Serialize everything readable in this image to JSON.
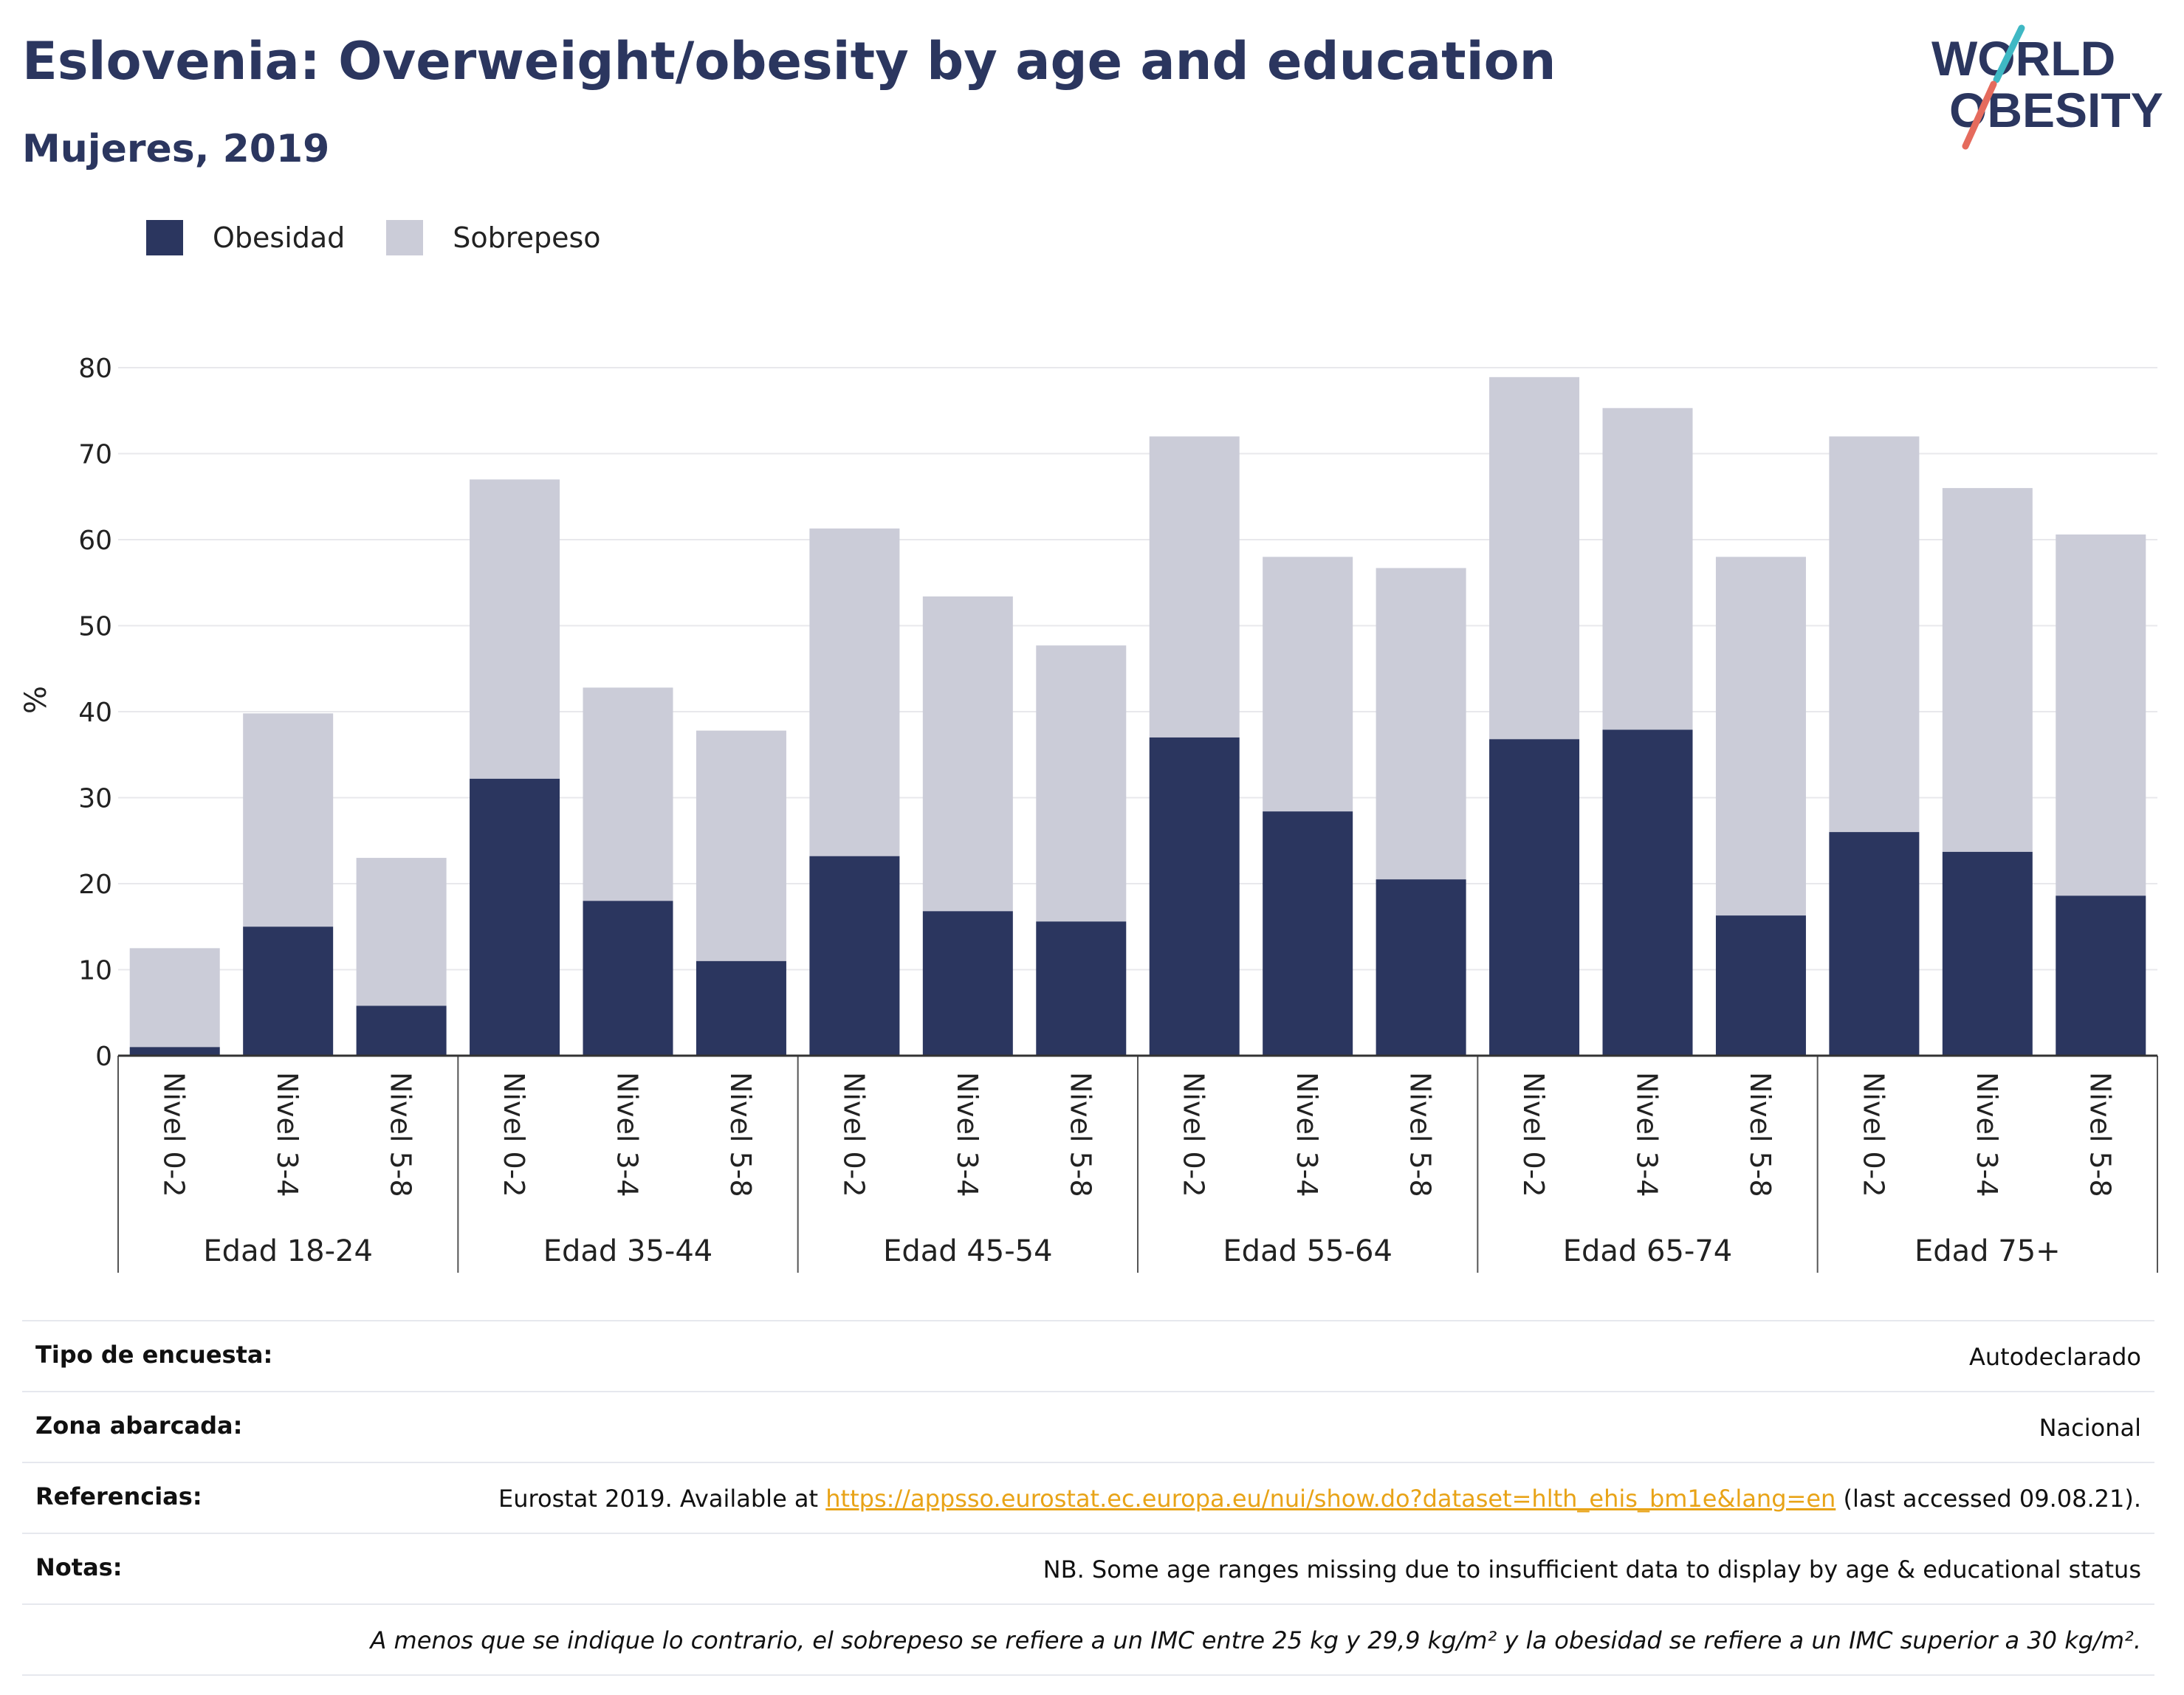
{
  "title": "Eslovenia: Overweight/obesity by age and education",
  "subtitle": "Mujeres, 2019",
  "logo": {
    "line1": "WORLD",
    "line2": "OBESITY"
  },
  "legend": [
    {
      "label": "Obesidad",
      "color": "#2b365f"
    },
    {
      "label": "Sobrepeso",
      "color": "#cbccd8"
    }
  ],
  "chart_data": {
    "type": "bar",
    "stacked": true,
    "ylabel": "%",
    "ylim": [
      0,
      80
    ],
    "yticks": [
      0,
      10,
      20,
      30,
      40,
      50,
      60,
      70,
      80
    ],
    "grid": true,
    "legend_position": "top-left",
    "groups": [
      {
        "label": "Edad 18-24",
        "categories": [
          "Nivel 0-2",
          "Nivel 3-4",
          "Nivel 5-8"
        ],
        "obesidad": [
          1.0,
          15.0,
          5.8
        ],
        "total": [
          12.5,
          39.8,
          23.0
        ]
      },
      {
        "label": "Edad 35-44",
        "categories": [
          "Nivel 0-2",
          "Nivel 3-4",
          "Nivel 5-8"
        ],
        "obesidad": [
          32.2,
          18.0,
          11.0
        ],
        "total": [
          67.0,
          42.8,
          37.8
        ]
      },
      {
        "label": "Edad 45-54",
        "categories": [
          "Nivel 0-2",
          "Nivel 3-4",
          "Nivel 5-8"
        ],
        "obesidad": [
          23.2,
          16.8,
          15.6
        ],
        "total": [
          61.3,
          53.4,
          47.7
        ]
      },
      {
        "label": "Edad 55-64",
        "categories": [
          "Nivel 0-2",
          "Nivel 3-4",
          "Nivel 5-8"
        ],
        "obesidad": [
          37.0,
          28.4,
          20.5
        ],
        "total": [
          72.0,
          58.0,
          56.7
        ]
      },
      {
        "label": "Edad 65-74",
        "categories": [
          "Nivel 0-2",
          "Nivel 3-4",
          "Nivel 5-8"
        ],
        "obesidad": [
          36.8,
          37.9,
          16.3
        ],
        "total": [
          78.9,
          75.3,
          58.0
        ]
      },
      {
        "label": "Edad 75+",
        "categories": [
          "Nivel 0-2",
          "Nivel 3-4",
          "Nivel 5-8"
        ],
        "obesidad": [
          26.0,
          23.7,
          18.6
        ],
        "total": [
          72.0,
          66.0,
          60.6
        ]
      }
    ]
  },
  "info": {
    "survey_label": "Tipo de encuesta:",
    "survey_value": "Autodeclarado",
    "zone_label": "Zona abarcada:",
    "zone_value": "Nacional",
    "refs_label": "Referencias:",
    "refs_prefix": "Eurostat 2019. Available at ",
    "refs_link": "https://appsso.eurostat.ec.europa.eu/nui/show.do?dataset=hlth_ehis_bm1e&lang=en",
    "refs_suffix": " (last accessed 09.08.21).",
    "notes_label": "Notas:",
    "notes_value": "NB. Some age ranges missing due to insufficient data to display by age & educational status",
    "footnote": "A menos que se indique lo contrario, el sobrepeso se refiere a un IMC entre 25 kg y 29,9 kg/m² y la obesidad se refiere a un IMC superior a 30 kg/m²."
  }
}
